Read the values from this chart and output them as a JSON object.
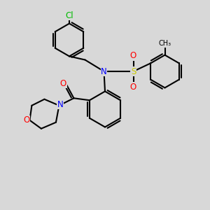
{
  "bg_color": "#d8d8d8",
  "bond_color": "#000000",
  "bond_lw": 1.5,
  "atom_colors": {
    "N": "#0000ff",
    "O": "#ff0000",
    "S": "#cccc00",
    "Cl": "#00bb00",
    "C": "#000000"
  },
  "font_size": 8.5
}
